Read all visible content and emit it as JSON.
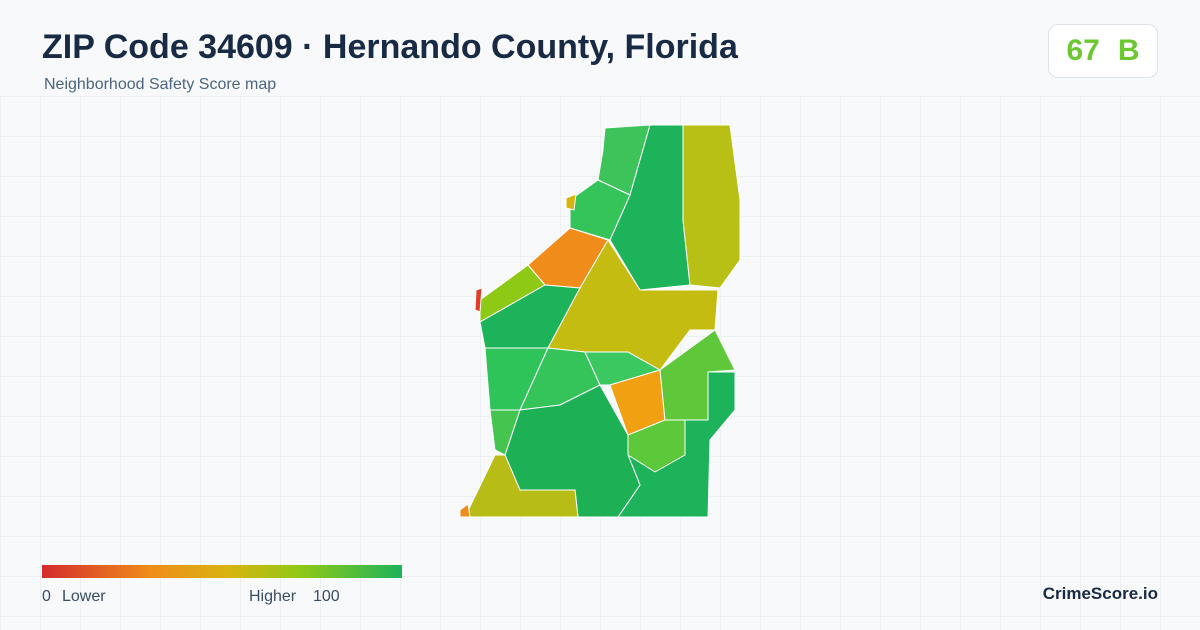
{
  "header": {
    "title": "ZIP Code 34609 · Hernando County, Florida",
    "subtitle": "Neighborhood Safety Score map"
  },
  "score": {
    "value": 67,
    "grade": "B"
  },
  "legend": {
    "min": 0,
    "min_label": "Lower",
    "max_label": "Higher",
    "max": 100
  },
  "brand": "CrimeScore.io"
}
